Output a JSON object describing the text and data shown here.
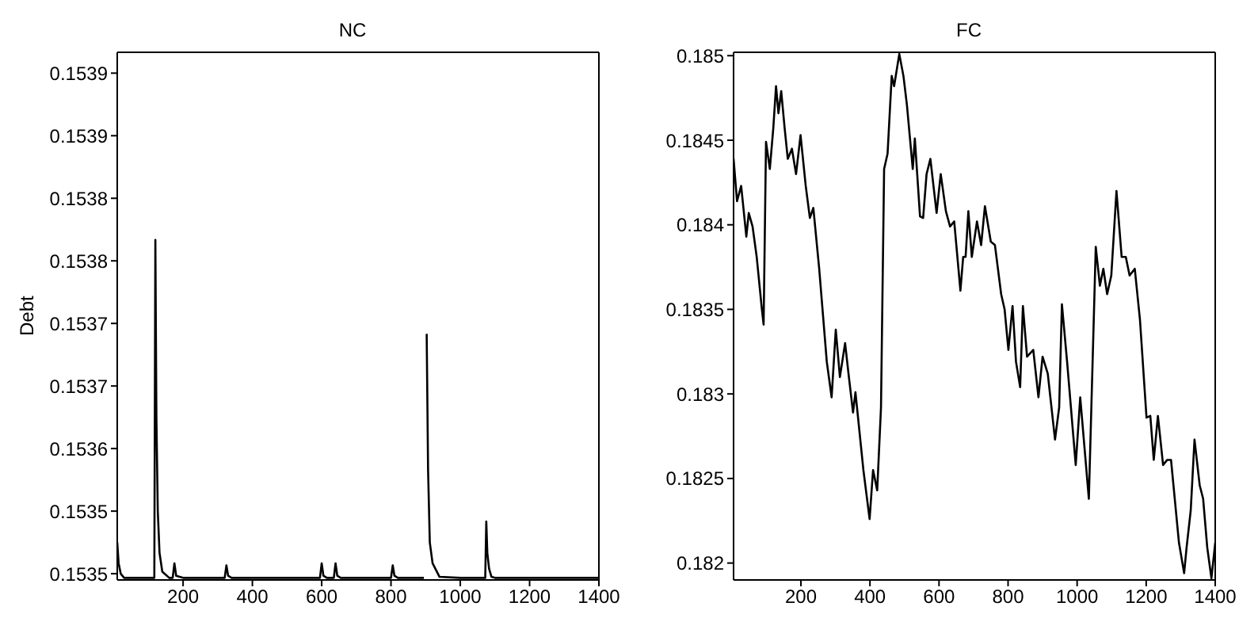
{
  "chart_data": [
    {
      "type": "line",
      "title": "NC",
      "ylabel": "Debt",
      "xlim": [
        10,
        1400
      ],
      "xticks": [
        200,
        400,
        600,
        800,
        1000,
        1200,
        1400
      ],
      "ylim": [
        0.153464,
        0.15397
      ],
      "yticks": [
        {
          "value": 0.15347,
          "label": "0.1535"
        },
        {
          "value": 0.15353,
          "label": "0.1535"
        },
        {
          "value": 0.15359,
          "label": "0.1536"
        },
        {
          "value": 0.15365,
          "label": "0.1537"
        },
        {
          "value": 0.15371,
          "label": "0.1537"
        },
        {
          "value": 0.15377,
          "label": "0.1538"
        },
        {
          "value": 0.15383,
          "label": "0.1538"
        },
        {
          "value": 0.15389,
          "label": "0.1539"
        },
        {
          "value": 0.15395,
          "label": "0.1539"
        }
      ],
      "x": [
        10,
        14,
        20,
        30,
        60,
        100,
        117,
        120,
        123,
        127,
        132,
        140,
        160,
        170,
        175,
        180,
        200,
        320,
        325,
        330,
        340,
        595,
        600,
        605,
        615,
        635,
        640,
        645,
        655,
        800,
        805,
        810,
        820,
        895,
        897,
        900,
        903,
        907,
        912,
        920,
        940,
        1000,
        1072,
        1075,
        1078,
        1083,
        1090,
        1100,
        1400
      ],
      "series": [
        {
          "color": "#000000",
          "values": [
            0.1535,
            0.15348,
            0.15347,
            0.153466,
            0.153466,
            0.153466,
            0.153466,
            0.15379,
            0.15362,
            0.15353,
            0.15349,
            0.153472,
            0.153466,
            0.153466,
            0.15348,
            0.153468,
            0.153466,
            0.153466,
            0.153478,
            0.153468,
            0.153466,
            0.153466,
            0.15348,
            0.153468,
            0.153466,
            0.153466,
            0.15348,
            0.153468,
            0.153466,
            0.153466,
            0.153478,
            0.153468,
            0.153466,
            0.153466,
            null,
            null,
            0.1537,
            0.15357,
            0.1535,
            0.15348,
            0.153467,
            0.153466,
            0.153466,
            0.15352,
            0.15349,
            0.153475,
            0.153467,
            0.153466,
            0.153466
          ]
        }
      ]
    },
    {
      "type": "line",
      "title": "FC",
      "xlim": [
        5,
        1400
      ],
      "xticks": [
        200,
        400,
        600,
        800,
        1000,
        1200,
        1400
      ],
      "ylim": [
        0.1819,
        0.18502
      ],
      "yticks": [
        0.182,
        0.1825,
        0.183,
        0.1835,
        0.184,
        0.1845,
        0.185
      ],
      "x": [
        5,
        15,
        27,
        42,
        49,
        60,
        72,
        87,
        92,
        99,
        110,
        120,
        128,
        135,
        143,
        153,
        162,
        174,
        186,
        199,
        214,
        226,
        236,
        253,
        275,
        289,
        301,
        313,
        328,
        339,
        351,
        358,
        381,
        399,
        409,
        421,
        432,
        441,
        451,
        463,
        470,
        485,
        497,
        507,
        524,
        530,
        545,
        554,
        564,
        575,
        593,
        605,
        620,
        632,
        644,
        662,
        670,
        677,
        685,
        695,
        710,
        722,
        733,
        750,
        762,
        780,
        790,
        801,
        813,
        823,
        835,
        843,
        855,
        873,
        888,
        900,
        915,
        936,
        948,
        956,
        971,
        996,
        1009,
        1034,
        1054,
        1066,
        1076,
        1087,
        1099,
        1114,
        1129,
        1141,
        1152,
        1167,
        1182,
        1201,
        1212,
        1222,
        1234,
        1249,
        1261,
        1272,
        1295,
        1310,
        1317,
        1329,
        1340,
        1355,
        1365,
        1377,
        1389,
        1400
      ],
      "series": [
        {
          "color": "#000000",
          "values": [
            0.18439,
            0.18414,
            0.18423,
            0.18393,
            0.18407,
            0.18399,
            0.18381,
            0.1835,
            0.18341,
            0.18449,
            0.18433,
            0.18457,
            0.18482,
            0.18466,
            0.18479,
            0.18457,
            0.18439,
            0.18445,
            0.1843,
            0.18453,
            0.18423,
            0.18404,
            0.1841,
            0.18374,
            0.18319,
            0.18298,
            0.18338,
            0.1831,
            0.1833,
            0.1831,
            0.18289,
            0.18301,
            0.18255,
            0.18226,
            0.18255,
            0.18243,
            0.18292,
            0.18433,
            0.18442,
            0.18488,
            0.18482,
            0.18501,
            0.18488,
            0.18471,
            0.18433,
            0.18451,
            0.18405,
            0.18404,
            0.1843,
            0.18439,
            0.18407,
            0.1843,
            0.18408,
            0.18399,
            0.18402,
            0.18361,
            0.18381,
            0.18381,
            0.18408,
            0.18381,
            0.18402,
            0.18388,
            0.18411,
            0.1839,
            0.18388,
            0.18359,
            0.1835,
            0.18326,
            0.18352,
            0.18319,
            0.18304,
            0.18352,
            0.18322,
            0.18326,
            0.18298,
            0.18322,
            0.18312,
            0.18273,
            0.18292,
            0.18353,
            0.18319,
            0.18258,
            0.18298,
            0.18238,
            0.18387,
            0.18364,
            0.18374,
            0.18359,
            0.1837,
            0.1842,
            0.18381,
            0.18381,
            0.1837,
            0.18374,
            0.18344,
            0.18286,
            0.18287,
            0.18261,
            0.18287,
            0.18258,
            0.18261,
            0.18261,
            0.18212,
            0.18194,
            0.18209,
            0.18231,
            0.18273,
            0.18246,
            0.18238,
            0.18209,
            0.18191,
            0.18212
          ]
        }
      ]
    }
  ]
}
